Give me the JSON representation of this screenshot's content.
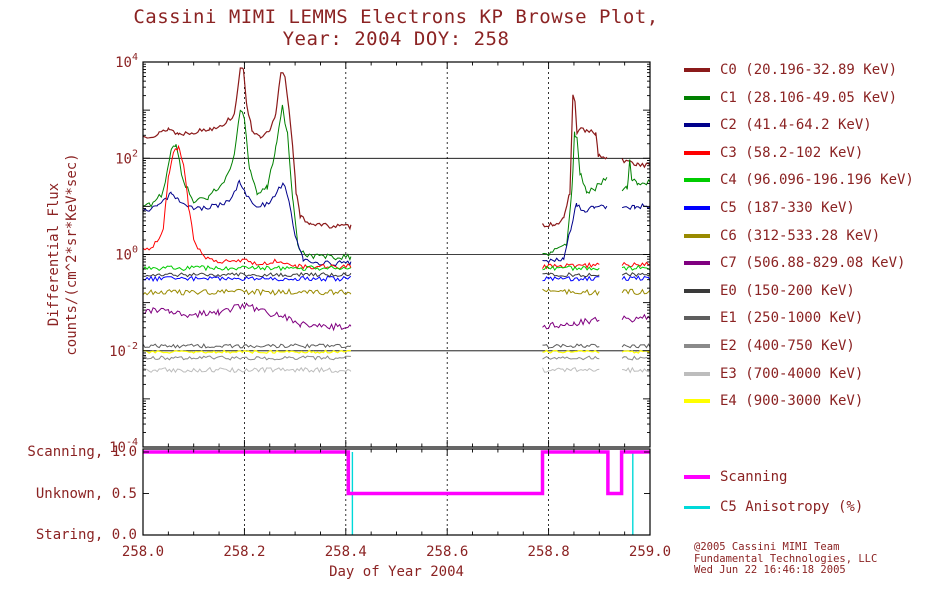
{
  "chart_data": {
    "type": "line",
    "title": "Cassini MIMI LEMMS Electrons KP Browse Plot,",
    "subtitle": "Year: 2004 DOY: 258",
    "colors": {
      "text": "#8B2323",
      "axis": "#000000",
      "background": "#FFFFFF"
    },
    "x": {
      "label": "Day of Year 2004",
      "min": 258.0,
      "max": 259.0,
      "tick_values": [
        258.0,
        258.2,
        258.4,
        258.6,
        258.8,
        259.0
      ],
      "tick_labels": [
        "258.0",
        "258.2",
        "258.4",
        "258.6",
        "258.8",
        "259.0"
      ],
      "minor_step": 0.05,
      "dashed_gridlines": [
        258.2,
        258.4,
        258.6,
        258.8
      ]
    },
    "y": {
      "label_line1": "Differential Flux",
      "label_line2": "counts/(cm^2*sr*KeV*sec)",
      "log_min": -4,
      "log_max": 4,
      "labeled_exponents": [
        4,
        2,
        0,
        -2,
        -4
      ],
      "solid_gridline_exponents": [
        2,
        0,
        -2
      ]
    },
    "y_status": {
      "labels": [
        {
          "text": "Scanning, 1.0",
          "value": 1.0
        },
        {
          "text": "Unknown, 0.5",
          "value": 0.5
        },
        {
          "text": "Staring, 0.0",
          "value": 0.0
        }
      ]
    },
    "series": [
      {
        "name": "C0",
        "legend_label": "C0 (20.196-32.89 KeV)",
        "color": "#8B1A1A",
        "noise": 0.05,
        "width": 1.2,
        "segments": [
          [
            [
              258.0,
              2.45
            ],
            [
              258.03,
              2.5
            ],
            [
              258.05,
              2.62
            ],
            [
              258.07,
              2.5
            ],
            [
              258.1,
              2.55
            ],
            [
              258.13,
              2.6
            ],
            [
              258.16,
              2.72
            ],
            [
              258.18,
              2.9
            ],
            [
              258.192,
              3.9
            ],
            [
              258.198,
              3.8
            ],
            [
              258.205,
              3.1
            ],
            [
              258.215,
              2.6
            ],
            [
              258.23,
              2.42
            ],
            [
              258.25,
              2.55
            ],
            [
              258.262,
              2.9
            ],
            [
              258.272,
              3.8
            ],
            [
              258.28,
              3.72
            ],
            [
              258.288,
              3.0
            ],
            [
              258.295,
              2.3
            ],
            [
              258.302,
              1.3
            ],
            [
              258.31,
              0.78
            ],
            [
              258.33,
              0.65
            ],
            [
              258.36,
              0.6
            ],
            [
              258.41,
              0.58
            ]
          ],
          [
            [
              258.788,
              0.62
            ],
            [
              258.81,
              0.63
            ],
            [
              258.83,
              0.72
            ],
            [
              258.842,
              1.3
            ],
            [
              258.848,
              3.3
            ],
            [
              258.852,
              3.15
            ],
            [
              258.856,
              2.55
            ],
            [
              258.864,
              2.62
            ],
            [
              258.875,
              2.56
            ],
            [
              258.893,
              2.52
            ],
            [
              258.898,
              2.05
            ],
            [
              258.915,
              2.0
            ]
          ],
          [
            [
              258.945,
              1.95
            ],
            [
              258.975,
              1.88
            ],
            [
              259.0,
              1.85
            ]
          ]
        ]
      },
      {
        "name": "C1",
        "legend_label": "C1 (28.106-49.05 KeV)",
        "color": "#008000",
        "noise": 0.06,
        "width": 1,
        "segments": [
          [
            [
              258.0,
              1.0
            ],
            [
              258.02,
              1.05
            ],
            [
              258.04,
              1.3
            ],
            [
              258.055,
              2.2
            ],
            [
              258.065,
              2.3
            ],
            [
              258.08,
              1.5
            ],
            [
              258.1,
              1.12
            ],
            [
              258.13,
              1.2
            ],
            [
              258.16,
              1.5
            ],
            [
              258.18,
              2.05
            ],
            [
              258.192,
              3.0
            ],
            [
              258.2,
              2.8
            ],
            [
              258.21,
              1.8
            ],
            [
              258.225,
              1.22
            ],
            [
              258.245,
              1.4
            ],
            [
              258.262,
              2.2
            ],
            [
              258.275,
              3.05
            ],
            [
              258.285,
              2.5
            ],
            [
              258.295,
              1.2
            ],
            [
              258.305,
              0.2
            ],
            [
              258.32,
              -0.05
            ],
            [
              258.41,
              -0.05
            ]
          ],
          [
            [
              258.788,
              0.0
            ],
            [
              258.81,
              0.05
            ],
            [
              258.835,
              0.2
            ],
            [
              258.846,
              1.3
            ],
            [
              258.851,
              2.5
            ],
            [
              258.856,
              2.4
            ],
            [
              258.862,
              1.7
            ],
            [
              258.875,
              1.3
            ],
            [
              258.89,
              1.35
            ],
            [
              258.9,
              1.5
            ],
            [
              258.915,
              1.55
            ]
          ],
          [
            [
              258.945,
              1.35
            ],
            [
              258.955,
              1.4
            ],
            [
              258.96,
              1.95
            ],
            [
              258.964,
              1.6
            ],
            [
              258.975,
              1.45
            ],
            [
              259.0,
              1.5
            ]
          ]
        ]
      },
      {
        "name": "C2",
        "legend_label": "C2 (41.4-64.2 KeV)",
        "color": "#00008B",
        "noise": 0.05,
        "width": 1,
        "segments": [
          [
            [
              258.0,
              0.9
            ],
            [
              258.03,
              1.0
            ],
            [
              258.055,
              1.25
            ],
            [
              258.07,
              1.15
            ],
            [
              258.1,
              0.95
            ],
            [
              258.14,
              1.0
            ],
            [
              258.17,
              1.1
            ],
            [
              258.19,
              1.5
            ],
            [
              258.2,
              1.3
            ],
            [
              258.22,
              1.0
            ],
            [
              258.25,
              1.05
            ],
            [
              258.268,
              1.4
            ],
            [
              258.28,
              1.45
            ],
            [
              258.29,
              1.0
            ],
            [
              258.3,
              0.4
            ],
            [
              258.315,
              -0.1
            ],
            [
              258.34,
              -0.18
            ],
            [
              258.41,
              -0.18
            ]
          ],
          [
            [
              258.788,
              -0.15
            ],
            [
              258.83,
              -0.1
            ],
            [
              258.845,
              0.6
            ],
            [
              258.855,
              1.05
            ],
            [
              258.87,
              0.9
            ],
            [
              258.89,
              1.0
            ],
            [
              258.915,
              1.0
            ]
          ],
          [
            [
              258.945,
              0.95
            ],
            [
              258.97,
              1.0
            ],
            [
              259.0,
              1.0
            ]
          ]
        ]
      },
      {
        "name": "C3",
        "legend_label": "C3 (58.2-102 KeV)",
        "color": "#FF0000",
        "noise": 0.05,
        "width": 1,
        "segments": [
          [
            [
              258.0,
              0.1
            ],
            [
              258.02,
              0.15
            ],
            [
              258.04,
              0.5
            ],
            [
              258.05,
              1.6
            ],
            [
              258.06,
              2.15
            ],
            [
              258.07,
              2.2
            ],
            [
              258.08,
              1.9
            ],
            [
              258.09,
              1.0
            ],
            [
              258.1,
              0.3
            ],
            [
              258.12,
              -0.05
            ],
            [
              258.16,
              -0.15
            ],
            [
              258.2,
              -0.1
            ],
            [
              258.22,
              -0.2
            ],
            [
              258.26,
              -0.15
            ],
            [
              258.3,
              -0.25
            ],
            [
              258.41,
              -0.25
            ]
          ],
          [
            [
              258.788,
              -0.25
            ],
            [
              258.9,
              -0.22
            ]
          ],
          [
            [
              258.945,
              -0.22
            ],
            [
              259.0,
              -0.2
            ]
          ]
        ]
      },
      {
        "name": "C4",
        "legend_label": "C4 (96.096-196.196 KeV)",
        "color": "#00CC00",
        "noise": 0.05,
        "width": 1,
        "segments": [
          [
            [
              258.0,
              -0.28
            ],
            [
              258.41,
              -0.28
            ]
          ],
          [
            [
              258.788,
              -0.28
            ],
            [
              258.9,
              -0.28
            ]
          ],
          [
            [
              258.945,
              -0.28
            ],
            [
              259.0,
              -0.28
            ]
          ]
        ]
      },
      {
        "name": "C5",
        "legend_label": "C5 (187-330 KeV)",
        "color": "#0000FF",
        "noise": 0.05,
        "width": 1,
        "segments": [
          [
            [
              258.0,
              -0.5
            ],
            [
              258.41,
              -0.5
            ]
          ],
          [
            [
              258.788,
              -0.5
            ],
            [
              258.9,
              -0.5
            ]
          ],
          [
            [
              258.945,
              -0.5
            ],
            [
              259.0,
              -0.5
            ]
          ]
        ]
      },
      {
        "name": "C6",
        "legend_label": "C6 (312-533.28 KeV)",
        "color": "#998A00",
        "noise": 0.06,
        "width": 1,
        "segments": [
          [
            [
              258.0,
              -0.78
            ],
            [
              258.41,
              -0.78
            ]
          ],
          [
            [
              258.788,
              -0.78
            ],
            [
              258.9,
              -0.78
            ]
          ],
          [
            [
              258.945,
              -0.78
            ],
            [
              259.0,
              -0.78
            ]
          ]
        ]
      },
      {
        "name": "C7",
        "legend_label": "C7 (506.88-829.08 KeV)",
        "color": "#800080",
        "noise": 0.07,
        "width": 1,
        "segments": [
          [
            [
              258.0,
              -1.15
            ],
            [
              258.05,
              -1.2
            ],
            [
              258.1,
              -1.25
            ],
            [
              258.15,
              -1.2
            ],
            [
              258.2,
              -1.05
            ],
            [
              258.24,
              -1.2
            ],
            [
              258.28,
              -1.3
            ],
            [
              258.31,
              -1.45
            ],
            [
              258.36,
              -1.5
            ],
            [
              258.41,
              -1.5
            ]
          ],
          [
            [
              258.788,
              -1.5
            ],
            [
              258.85,
              -1.42
            ],
            [
              258.9,
              -1.35
            ]
          ],
          [
            [
              258.945,
              -1.35
            ],
            [
              259.0,
              -1.3
            ]
          ]
        ]
      },
      {
        "name": "E0",
        "legend_label": "E0 (150-200 KeV)",
        "color": "#3A3A3A",
        "noise": 0.04,
        "width": 1,
        "segments": [
          [
            [
              258.0,
              -0.42
            ],
            [
              258.41,
              -0.42
            ]
          ],
          [
            [
              258.788,
              -0.42
            ],
            [
              258.9,
              -0.42
            ]
          ],
          [
            [
              258.945,
              -0.42
            ],
            [
              259.0,
              -0.42
            ]
          ]
        ]
      },
      {
        "name": "E1",
        "legend_label": "E1 (250-1000 KeV)",
        "color": "#5E5E5E",
        "noise": 0.04,
        "width": 1,
        "segments": [
          [
            [
              258.0,
              -1.9
            ],
            [
              258.41,
              -1.9
            ]
          ],
          [
            [
              258.788,
              -1.9
            ],
            [
              258.9,
              -1.9
            ]
          ],
          [
            [
              258.945,
              -1.9
            ],
            [
              259.0,
              -1.9
            ]
          ]
        ]
      },
      {
        "name": "E2",
        "legend_label": "E2 (400-750 KeV)",
        "color": "#8A8A8A",
        "noise": 0.04,
        "width": 1,
        "segments": [
          [
            [
              258.0,
              -2.15
            ],
            [
              258.41,
              -2.15
            ]
          ],
          [
            [
              258.788,
              -2.15
            ],
            [
              258.9,
              -2.15
            ]
          ],
          [
            [
              258.945,
              -2.15
            ],
            [
              259.0,
              -2.15
            ]
          ]
        ]
      },
      {
        "name": "E3",
        "legend_label": "E3 (700-4000 KeV)",
        "color": "#BDBDBD",
        "noise": 0.05,
        "width": 1,
        "segments": [
          [
            [
              258.0,
              -2.4
            ],
            [
              258.41,
              -2.4
            ]
          ],
          [
            [
              258.788,
              -2.4
            ],
            [
              258.9,
              -2.4
            ]
          ],
          [
            [
              258.945,
              -2.4
            ],
            [
              259.0,
              -2.4
            ]
          ]
        ]
      },
      {
        "name": "E4",
        "legend_label": "E4 (900-3000 KeV)",
        "color": "#FFFF00",
        "noise": 0.03,
        "width": 1.2,
        "segments": [
          [
            [
              258.0,
              -2.02
            ],
            [
              258.41,
              -2.02
            ]
          ],
          [
            [
              258.788,
              -2.02
            ],
            [
              258.9,
              -2.02
            ]
          ],
          [
            [
              258.945,
              -2.02
            ],
            [
              259.0,
              -2.02
            ]
          ]
        ]
      }
    ],
    "status": {
      "name": "Scanning",
      "color": "#FF00FF",
      "points": [
        [
          258.0,
          1.0
        ],
        [
          258.405,
          1.0
        ],
        [
          258.405,
          0.5
        ],
        [
          258.788,
          0.5
        ],
        [
          258.788,
          1.0
        ],
        [
          258.917,
          1.0
        ],
        [
          258.917,
          0.5
        ],
        [
          258.944,
          0.5
        ],
        [
          258.944,
          1.0
        ],
        [
          259.0,
          1.0
        ]
      ]
    },
    "anisotropy": {
      "name": "C5 Anisotropy (%)",
      "color": "#00D9D9",
      "spikes": [
        [
          258.413,
          1.0
        ],
        [
          258.966,
          1.0
        ]
      ]
    }
  },
  "footer": {
    "line1": "@2005 Cassini MIMI Team",
    "line2": "Fundamental Technologies, LLC",
    "line3": "Wed Jun 22 16:46:18 2005"
  }
}
